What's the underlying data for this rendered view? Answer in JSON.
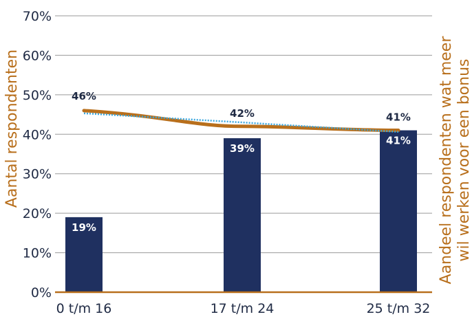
{
  "chart_data": {
    "type": "bar",
    "categories": [
      "0 t/m 16",
      "17 t/m 24",
      "25 t/m 32"
    ],
    "series": [
      {
        "name": "",
        "kind": "bar",
        "values": [
          19,
          39,
          41
        ],
        "labels": [
          "19%",
          "39%",
          "41%"
        ],
        "color": "#1f3060"
      },
      {
        "name": "",
        "kind": "line",
        "values": [
          46,
          42,
          41
        ],
        "labels": [
          "46%",
          "42%",
          "41%"
        ],
        "color": "#b86f1c"
      },
      {
        "name": "",
        "kind": "trendline",
        "values": [
          45.3,
          43,
          40.6
        ],
        "color": "#3aa6dd"
      }
    ],
    "yticks": [
      "0%",
      "10%",
      "20%",
      "30%",
      "40%",
      "50%",
      "60%",
      "70%"
    ],
    "ylim": [
      0,
      70
    ],
    "ylabel_left": "Aantal respondenten",
    "ylabel_right_line1": "Aandeel respondenten wat meer",
    "ylabel_right_line2": "wil werken voor een bonus",
    "grid": true,
    "axis_color": "#b86f1c",
    "grid_color": "#9a9a9a",
    "text_color": "#1f2a44"
  }
}
